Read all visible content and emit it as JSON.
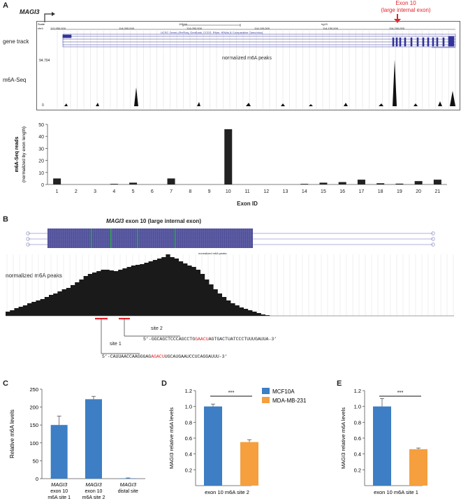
{
  "panels": {
    "A": {
      "letter": "A",
      "gene_label": "MAGI3",
      "exon_callout": {
        "line1": "Exon 10",
        "line2": "(large internal exon)"
      },
      "browser_header": {
        "scale_label": "Scale",
        "chr_label": "chr1:",
        "scale_bar": "100 kb",
        "assembly": "hg19",
        "coords": [
          "113,950,000",
          "114,000,000",
          "114,050,000",
          "114,100,000",
          "114,150,000",
          "114,200,000"
        ],
        "ucsc_track": "UCSC Genes (RefSeq, GenBank, CCDS, Rfam, tRNAs & Comparative Genomics)"
      },
      "track_labels": {
        "gene": "gene track",
        "m6a": "m6A-Seq"
      },
      "ymax": "94.704",
      "ymin": "0",
      "peaks_title": "normalized m6A peaks"
    },
    "B": {
      "letter": "B",
      "title_gene": "MAGI3",
      "title_rest": " exon 10 (large internal exon)",
      "mini_title": "normalized m6A peaks",
      "peak_label": "normalized m6A peaks",
      "site1": "site 1",
      "site2": "site 2",
      "seq2": {
        "pre": "5’-GGCAGCTCCCAGCCTG",
        "motif": "GAACU",
        "post": "AGTGACTUATCCCTUUUGAUUA-3’"
      },
      "seq1": {
        "pre": "5’-CAUUAACCAAGGGAG",
        "motif": "AGACU",
        "post": "UGCAUGAAUCCUCAGGAUUU-3’"
      }
    },
    "C": {
      "letter": "C"
    },
    "D": {
      "letter": "D"
    },
    "E": {
      "letter": "E"
    }
  },
  "colors": {
    "blue": "#3d7ec4",
    "orange": "#f59f3f",
    "red": "#e2232a",
    "bar": "#222222",
    "track_blue": "#33339a"
  },
  "chart_data": [
    {
      "id": "A-exon-reads",
      "type": "bar",
      "title": "",
      "xlabel": "Exon ID",
      "ylabel": "m6A-Seq reads",
      "ylabel2": "(normalized by exon length)",
      "categories": [
        "1",
        "2",
        "3",
        "4",
        "5",
        "6",
        "7",
        "8",
        "9",
        "10",
        "11",
        "12",
        "13",
        "14",
        "15",
        "16",
        "17",
        "18",
        "19",
        "20",
        "21"
      ],
      "values": [
        5,
        0,
        0,
        0.5,
        1.5,
        0,
        5,
        0,
        0,
        46,
        0,
        0,
        0,
        0.5,
        1.5,
        2,
        4,
        1,
        0.7,
        2.8,
        4
      ],
      "ylim": [
        0,
        50
      ],
      "yticks": [
        "0",
        "10",
        "20",
        "30",
        "40",
        "50"
      ]
    },
    {
      "id": "C",
      "type": "bar",
      "ylabel": "Relative m6A levels",
      "categories": [
        {
          "gene": "MAGI3",
          "l2": "exon 10",
          "l3": "m6A site 1"
        },
        {
          "gene": "MAGI3",
          "l2": "exon 10",
          "l3": "m6A site 2"
        },
        {
          "gene": "MAGI3",
          "l2": "distal site",
          "l3": ""
        }
      ],
      "values": [
        150,
        222,
        1
      ],
      "errors": [
        25,
        8,
        1
      ],
      "ylim": [
        0,
        250
      ],
      "yticks": [
        "0",
        "50",
        "100",
        "150",
        "200",
        "250"
      ]
    },
    {
      "id": "D",
      "type": "bar",
      "ylabel": "MAGI3 relative m6A levels",
      "xlabel": "exon 10 m6A site 2",
      "series": [
        {
          "name": "MCF10A",
          "value": 1.0,
          "error": 0.03
        },
        {
          "name": "MDA-MB-231",
          "value": 0.55,
          "error": 0.03
        }
      ],
      "significance": "***",
      "ylim": [
        0,
        1.2
      ],
      "yticks": [
        "0.2",
        "0.4",
        "0.6",
        "0.8",
        "1.0",
        "1.2"
      ]
    },
    {
      "id": "E",
      "type": "bar",
      "ylabel": "MAGI3 relative m6A levels",
      "xlabel": "exon 10 m6A site 1",
      "series": [
        {
          "name": "MCF10A",
          "value": 1.0,
          "error": 0.1
        },
        {
          "name": "MDA-MB-231",
          "value": 0.46,
          "error": 0.015
        }
      ],
      "significance": "***",
      "ylim": [
        0,
        1.2
      ],
      "yticks": [
        "0.2",
        "0.4",
        "0.6",
        "0.8",
        "1.0",
        "1.2"
      ]
    }
  ]
}
